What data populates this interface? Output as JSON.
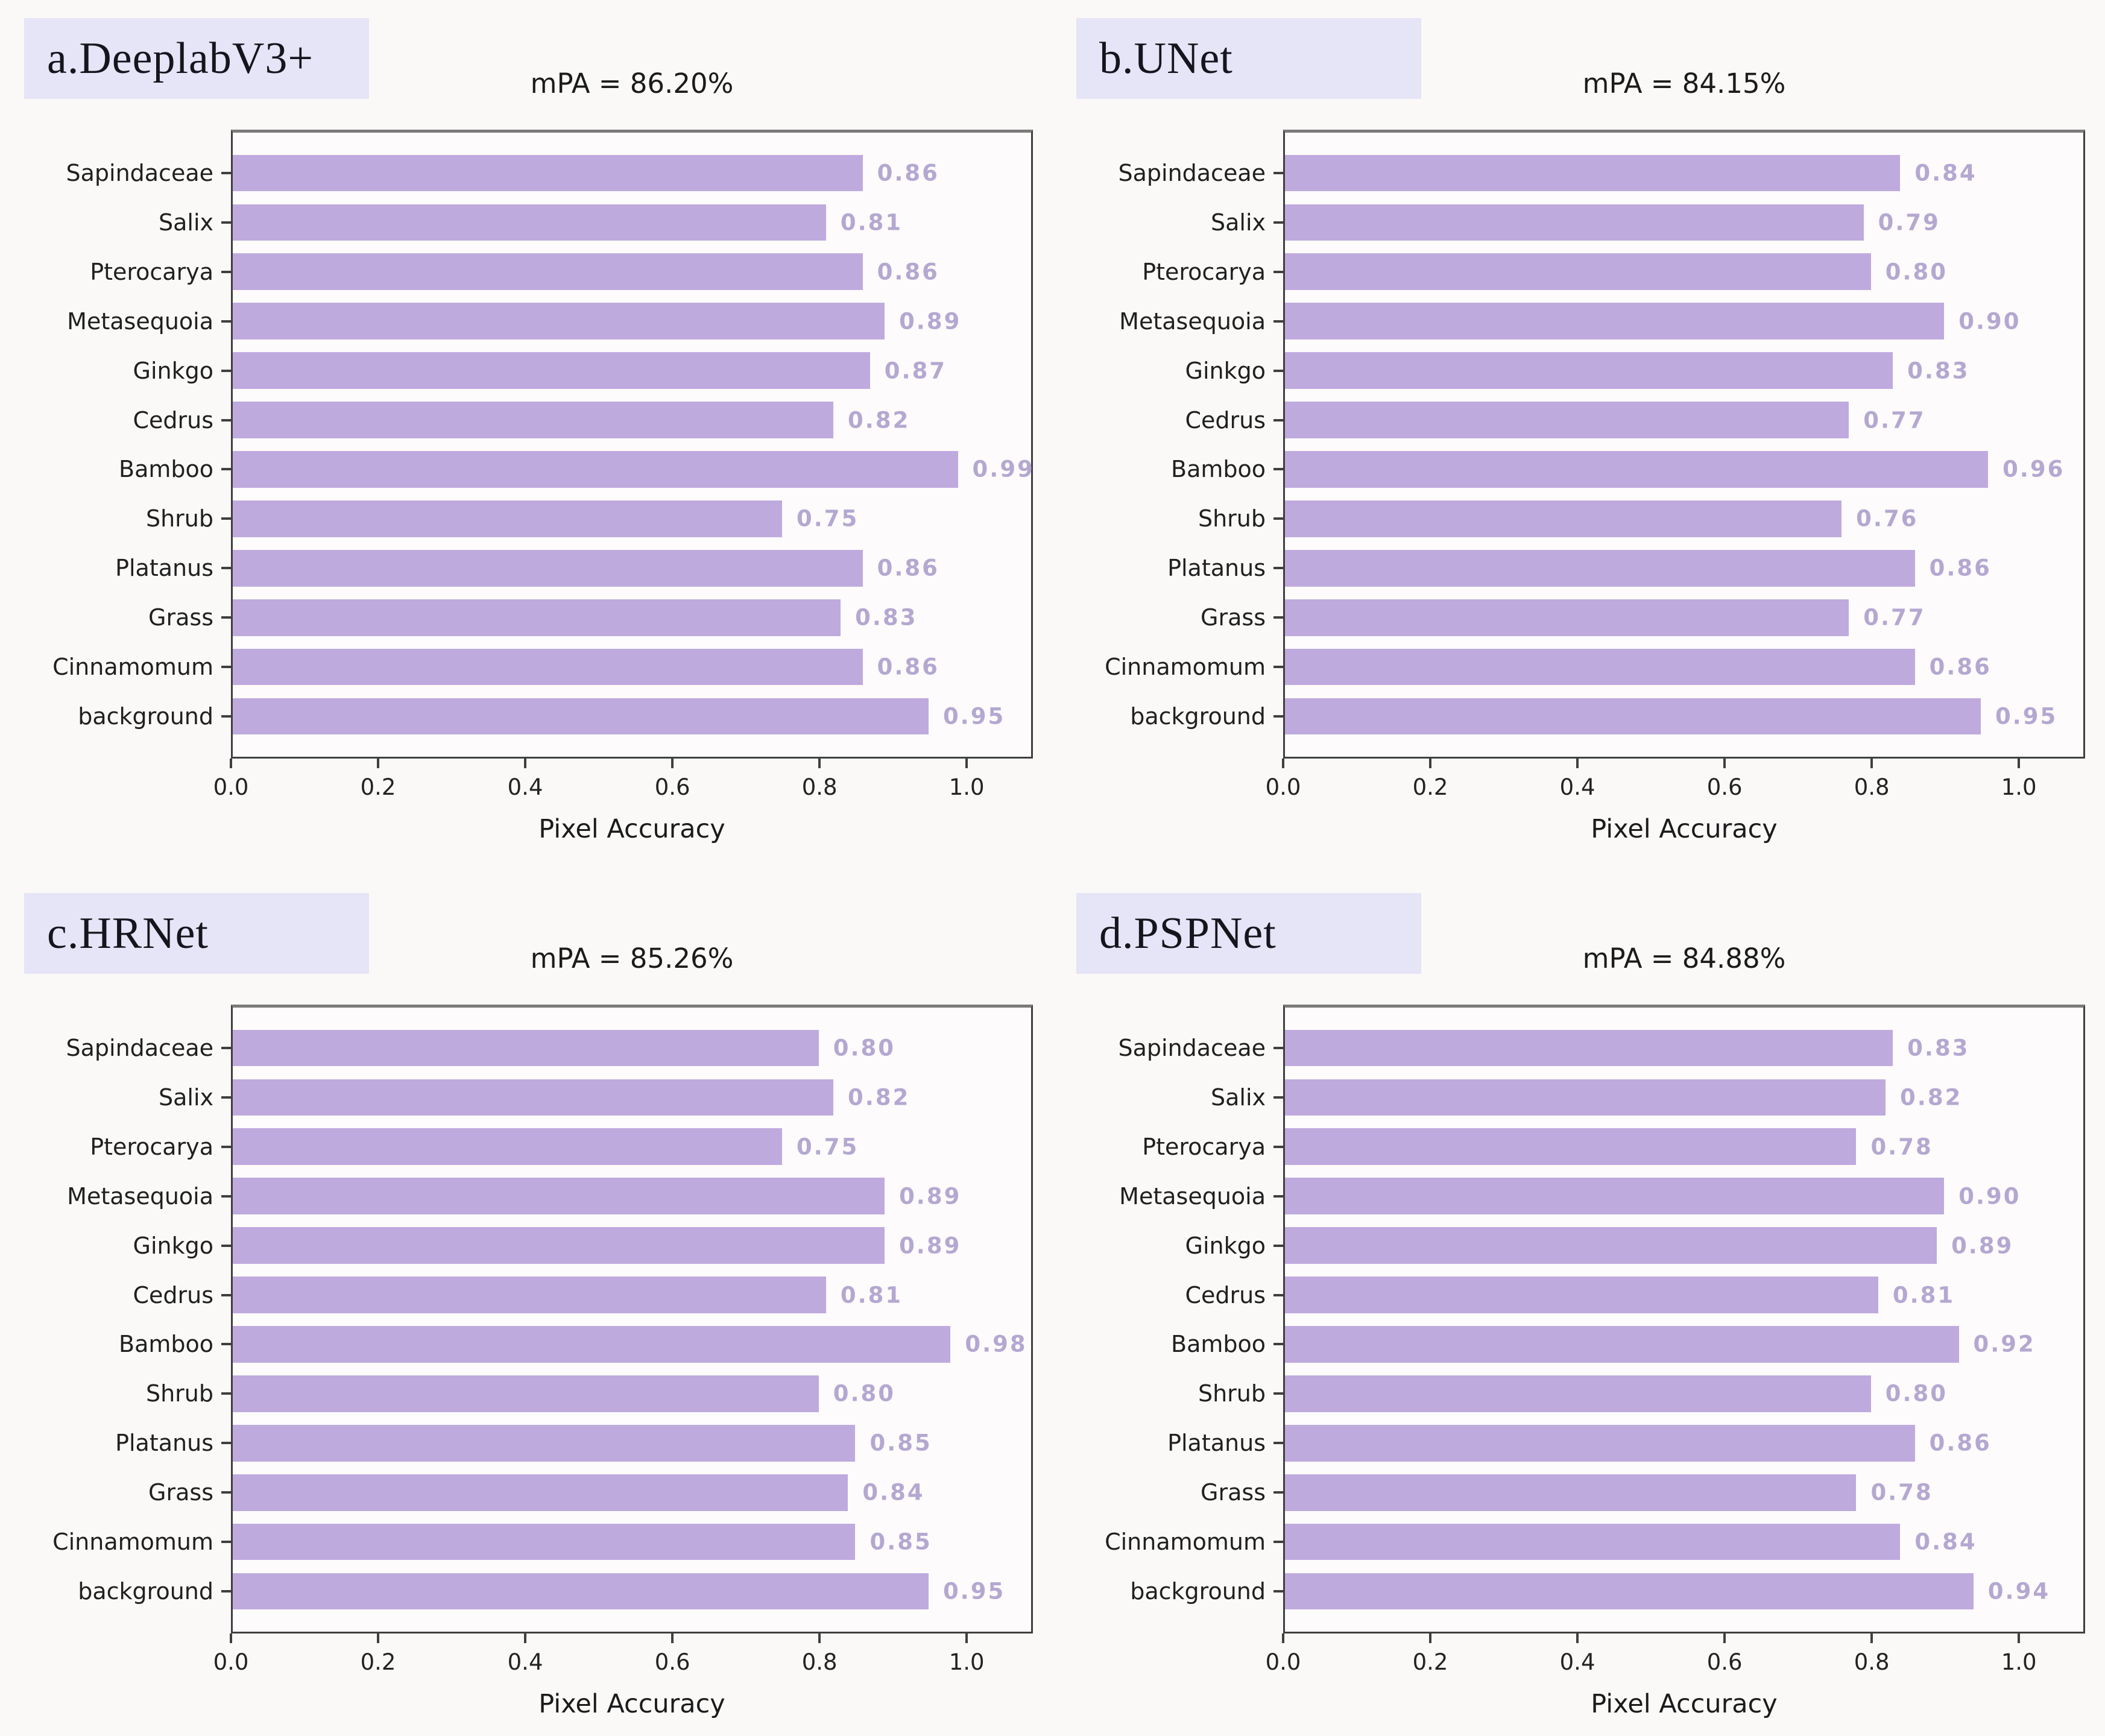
{
  "figure": {
    "xlabel": "Pixel Accuracy",
    "xmax": 1.09,
    "x_ticks": [
      {
        "v": 0.0,
        "label": "0.0"
      },
      {
        "v": 0.2,
        "label": "0.2"
      },
      {
        "v": 0.4,
        "label": "0.4"
      },
      {
        "v": 0.6,
        "label": "0.6"
      },
      {
        "v": 0.8,
        "label": "0.8"
      },
      {
        "v": 1.0,
        "label": "1.0"
      }
    ],
    "categories": [
      "Sapindaceae",
      "Salix",
      "Pterocarya",
      "Metasequoia",
      "Ginkgo",
      "Cedrus",
      "Bamboo",
      "Shrub",
      "Platanus",
      "Grass",
      "Cinnamomum",
      "background"
    ],
    "colors": {
      "bar": "#bfaade",
      "value_label": "#b4a8d1",
      "corner_box_bg": "#e6e4f7",
      "spine": "#3f3f3f",
      "top_spine": "#7b7b7b"
    },
    "panels": [
      {
        "id": "a",
        "corner_label": "a.DeeplabV3+",
        "title": "mPA = 86.20%",
        "values": [
          0.86,
          0.81,
          0.86,
          0.89,
          0.87,
          0.82,
          0.99,
          0.75,
          0.86,
          0.83,
          0.86,
          0.95
        ],
        "value_labels": [
          "0.86",
          "0.81",
          "0.86",
          "0.89",
          "0.87",
          "0.82",
          "0.99",
          "0.75",
          "0.86",
          "0.83",
          "0.86",
          "0.95"
        ]
      },
      {
        "id": "b",
        "corner_label": "b.UNet",
        "title": "mPA = 84.15%",
        "values": [
          0.84,
          0.79,
          0.8,
          0.9,
          0.83,
          0.77,
          0.96,
          0.76,
          0.86,
          0.77,
          0.86,
          0.95
        ],
        "value_labels": [
          "0.84",
          "0.79",
          "0.80",
          "0.90",
          "0.83",
          "0.77",
          "0.96",
          "0.76",
          "0.86",
          "0.77",
          "0.86",
          "0.95"
        ]
      },
      {
        "id": "c",
        "corner_label": "c.HRNet",
        "title": "mPA = 85.26%",
        "values": [
          0.8,
          0.82,
          0.75,
          0.89,
          0.89,
          0.81,
          0.98,
          0.8,
          0.85,
          0.84,
          0.85,
          0.95
        ],
        "value_labels": [
          "0.80",
          "0.82",
          "0.75",
          "0.89",
          "0.89",
          "0.81",
          "0.98",
          "0.80",
          "0.85",
          "0.84",
          "0.85",
          "0.95"
        ]
      },
      {
        "id": "d",
        "corner_label": "d.PSPNet",
        "title": "mPA = 84.88%",
        "values": [
          0.83,
          0.82,
          0.78,
          0.9,
          0.89,
          0.81,
          0.92,
          0.8,
          0.86,
          0.78,
          0.84,
          0.94
        ],
        "value_labels": [
          "0.83",
          "0.82",
          "0.78",
          "0.90",
          "0.89",
          "0.81",
          "0.92",
          "0.80",
          "0.86",
          "0.78",
          "0.84",
          "0.94"
        ]
      }
    ]
  },
  "chart_data": [
    {
      "type": "bar",
      "orientation": "horizontal",
      "panel_label": "a.DeeplabV3+",
      "title": "mPA = 86.20%",
      "xlabel": "Pixel Accuracy",
      "categories": [
        "Sapindaceae",
        "Salix",
        "Pterocarya",
        "Metasequoia",
        "Ginkgo",
        "Cedrus",
        "Bamboo",
        "Shrub",
        "Platanus",
        "Grass",
        "Cinnamomum",
        "background"
      ],
      "values": [
        0.86,
        0.81,
        0.86,
        0.89,
        0.87,
        0.82,
        0.99,
        0.75,
        0.86,
        0.83,
        0.86,
        0.95
      ],
      "xlim": [
        0,
        1.09
      ],
      "xticks": [
        0.0,
        0.2,
        0.4,
        0.6,
        0.8,
        1.0
      ],
      "grid": false,
      "legend": false,
      "bar_color": "#bfaade"
    },
    {
      "type": "bar",
      "orientation": "horizontal",
      "panel_label": "b.UNet",
      "title": "mPA = 84.15%",
      "xlabel": "Pixel Accuracy",
      "categories": [
        "Sapindaceae",
        "Salix",
        "Pterocarya",
        "Metasequoia",
        "Ginkgo",
        "Cedrus",
        "Bamboo",
        "Shrub",
        "Platanus",
        "Grass",
        "Cinnamomum",
        "background"
      ],
      "values": [
        0.84,
        0.79,
        0.8,
        0.9,
        0.83,
        0.77,
        0.96,
        0.76,
        0.86,
        0.77,
        0.86,
        0.95
      ],
      "xlim": [
        0,
        1.09
      ],
      "xticks": [
        0.0,
        0.2,
        0.4,
        0.6,
        0.8,
        1.0
      ],
      "grid": false,
      "legend": false,
      "bar_color": "#bfaade"
    },
    {
      "type": "bar",
      "orientation": "horizontal",
      "panel_label": "c.HRNet",
      "title": "mPA = 85.26%",
      "xlabel": "Pixel Accuracy",
      "categories": [
        "Sapindaceae",
        "Salix",
        "Pterocarya",
        "Metasequoia",
        "Ginkgo",
        "Cedrus",
        "Bamboo",
        "Shrub",
        "Platanus",
        "Grass",
        "Cinnamomum",
        "background"
      ],
      "values": [
        0.8,
        0.82,
        0.75,
        0.89,
        0.89,
        0.81,
        0.98,
        0.8,
        0.85,
        0.84,
        0.85,
        0.95
      ],
      "xlim": [
        0,
        1.09
      ],
      "xticks": [
        0.0,
        0.2,
        0.4,
        0.6,
        0.8,
        1.0
      ],
      "grid": false,
      "legend": false,
      "bar_color": "#bfaade"
    },
    {
      "type": "bar",
      "orientation": "horizontal",
      "panel_label": "d.PSPNet",
      "title": "mPA = 84.88%",
      "xlabel": "Pixel Accuracy",
      "categories": [
        "Sapindaceae",
        "Salix",
        "Pterocarya",
        "Metasequoia",
        "Ginkgo",
        "Cedrus",
        "Bamboo",
        "Shrub",
        "Platanus",
        "Grass",
        "Cinnamomum",
        "background"
      ],
      "values": [
        0.83,
        0.82,
        0.78,
        0.9,
        0.89,
        0.81,
        0.92,
        0.8,
        0.86,
        0.78,
        0.84,
        0.94
      ],
      "xlim": [
        0,
        1.09
      ],
      "xticks": [
        0.0,
        0.2,
        0.4,
        0.6,
        0.8,
        1.0
      ],
      "grid": false,
      "legend": false,
      "bar_color": "#bfaade"
    }
  ]
}
